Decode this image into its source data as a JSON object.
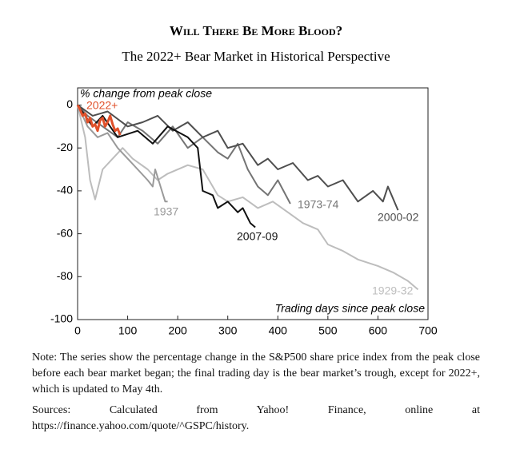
{
  "title": "Will There Be More Blood?",
  "subtitle": "The 2022+ Bear Market in Historical Perspective",
  "chart_data": {
    "type": "line",
    "y_label": "% change from peak close",
    "x_label": "Trading days since peak close",
    "xlim": [
      0,
      700
    ],
    "xticks": [
      0,
      100,
      200,
      300,
      400,
      500,
      600,
      700
    ],
    "ylim": [
      -100,
      8
    ],
    "yticks": [
      0,
      -20,
      -40,
      -60,
      -80,
      -100
    ],
    "series": [
      {
        "name": "1929-32",
        "color": "#bdbdbd",
        "x": [
          0,
          15,
          25,
          35,
          50,
          70,
          90,
          110,
          140,
          160,
          180,
          220,
          250,
          280,
          300,
          330,
          360,
          390,
          420,
          450,
          480,
          500,
          530,
          560,
          600,
          630,
          660,
          680
        ],
        "values": [
          0,
          -15,
          -35,
          -44,
          -30,
          -25,
          -20,
          -25,
          -30,
          -35,
          -32,
          -28,
          -30,
          -42,
          -45,
          -43,
          -48,
          -45,
          -50,
          -55,
          -58,
          -65,
          -68,
          -72,
          -75,
          -78,
          -82,
          -86
        ]
      },
      {
        "name": "1937",
        "color": "#9a9a9a",
        "x": [
          0,
          20,
          40,
          60,
          80,
          100,
          120,
          140,
          150,
          155,
          175,
          180
        ],
        "values": [
          0,
          -10,
          -15,
          -13,
          -20,
          -25,
          -30,
          -35,
          -38,
          -30,
          -45,
          -45
        ]
      },
      {
        "name": "1973-74",
        "color": "#747474",
        "x": [
          0,
          20,
          50,
          80,
          100,
          130,
          160,
          190,
          220,
          250,
          280,
          300,
          320,
          340,
          360,
          380,
          400,
          425
        ],
        "values": [
          0,
          -5,
          -10,
          -15,
          -8,
          -12,
          -18,
          -10,
          -20,
          -15,
          -22,
          -25,
          -18,
          -30,
          -38,
          -42,
          -35,
          -46
        ]
      },
      {
        "name": "2000-02",
        "color": "#4e4e4e",
        "x": [
          0,
          30,
          60,
          100,
          130,
          160,
          190,
          220,
          250,
          280,
          300,
          330,
          360,
          380,
          400,
          430,
          460,
          480,
          500,
          530,
          560,
          590,
          610,
          620,
          640
        ],
        "values": [
          0,
          -5,
          -3,
          -10,
          -8,
          -5,
          -12,
          -8,
          -15,
          -12,
          -20,
          -18,
          -28,
          -25,
          -30,
          -27,
          -35,
          -33,
          -38,
          -35,
          -45,
          -40,
          -45,
          -38,
          -49
        ]
      },
      {
        "name": "2007-09",
        "color": "#111111",
        "x": [
          0,
          30,
          50,
          80,
          120,
          150,
          180,
          220,
          240,
          250,
          270,
          280,
          300,
          320,
          330,
          345,
          355
        ],
        "values": [
          0,
          -10,
          -5,
          -15,
          -12,
          -18,
          -10,
          -15,
          -20,
          -40,
          -42,
          -48,
          -45,
          -50,
          -48,
          -55,
          -57
        ]
      },
      {
        "name": "2022+",
        "color": "#e0502a",
        "x": [
          0,
          5,
          10,
          15,
          20,
          25,
          30,
          35,
          40,
          45,
          50,
          55,
          60,
          65,
          70,
          75,
          80,
          85
        ],
        "values": [
          0,
          -2,
          -5,
          -4,
          -8,
          -6,
          -10,
          -9,
          -12,
          -7,
          -6,
          -10,
          -8,
          -5,
          -9,
          -12,
          -11,
          -14
        ]
      }
    ]
  },
  "note": "Note: The series show the percentage change in the S&P500 share price index from the peak close before each bear market began; the final trading day is the bear market’s trough, except for 2022+, which is updated to May 4th.",
  "sources": "Sources: Calculated from Yahoo! Finance, online at https://finance.yahoo.com/quote/^GSPC/history."
}
